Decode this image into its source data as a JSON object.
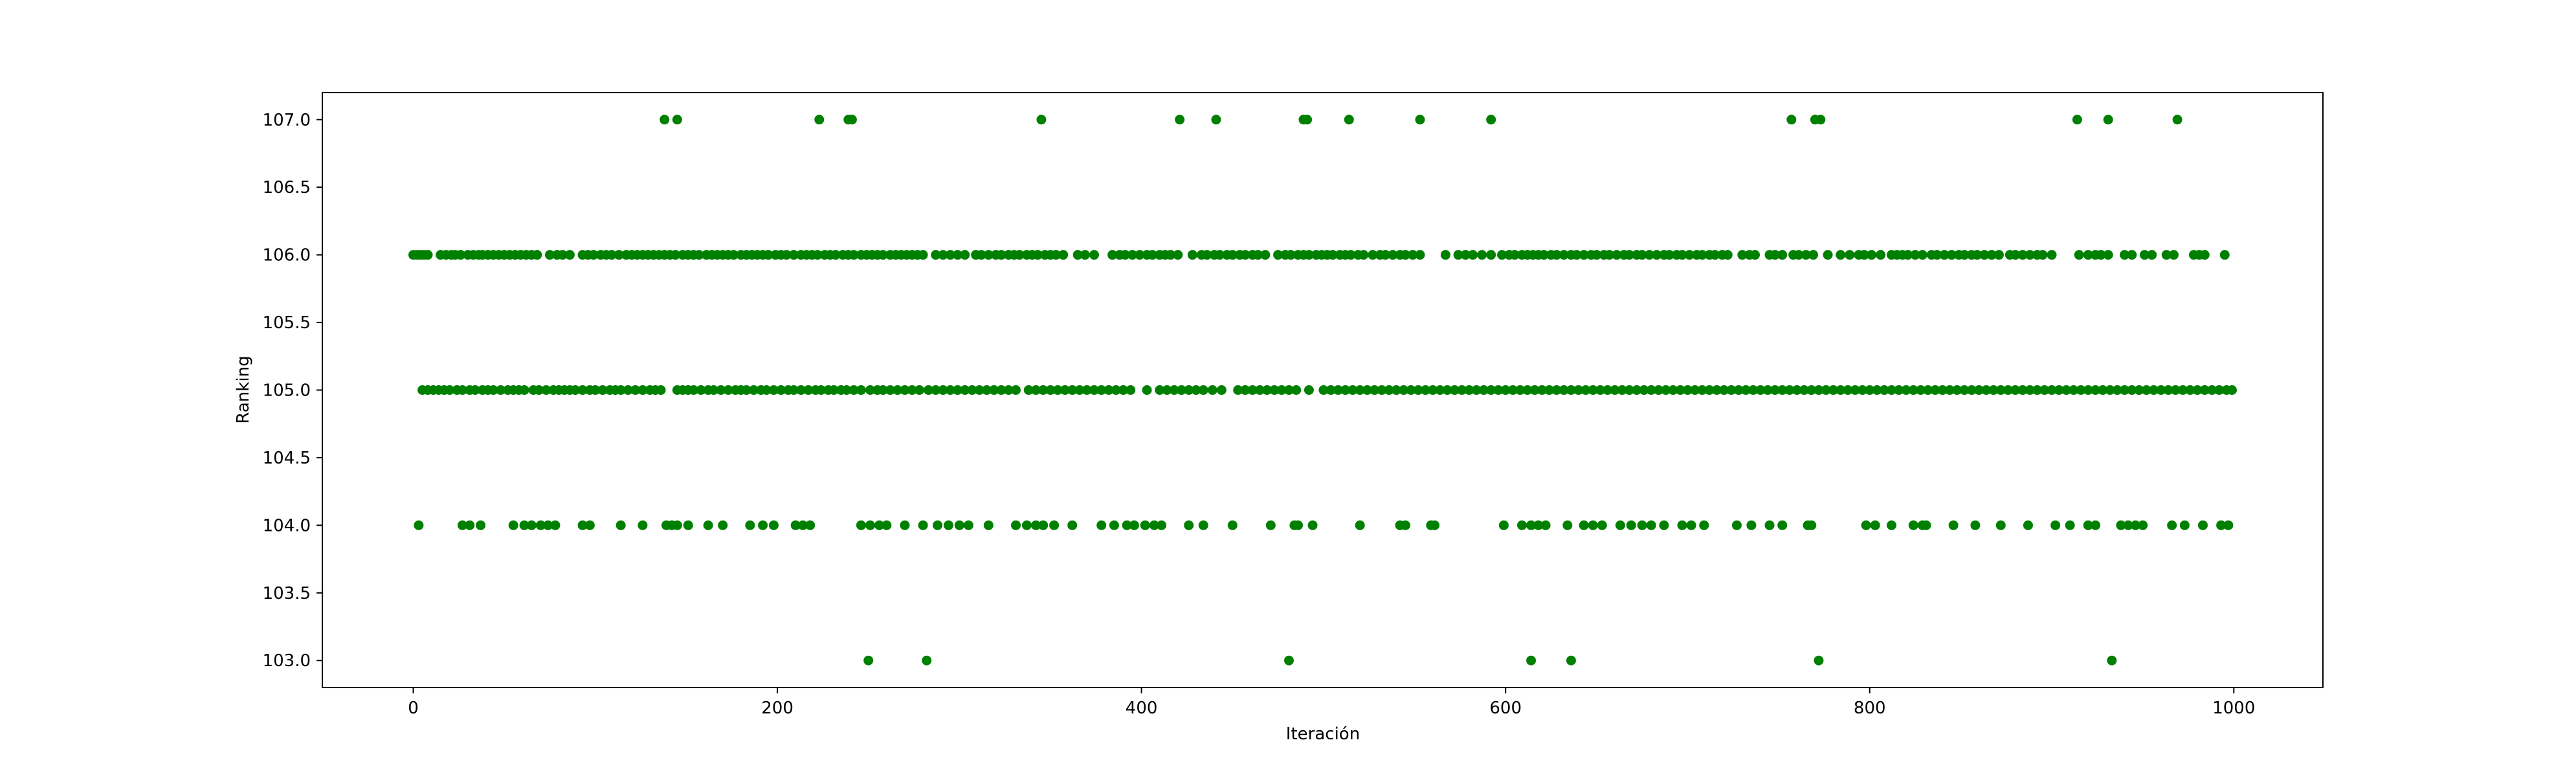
{
  "chart_data": {
    "type": "scatter",
    "title": "",
    "xlabel": "Iteración",
    "ylabel": "Ranking",
    "xlim": [
      -49.95,
      1048.95
    ],
    "ylim": [
      102.8,
      107.2
    ],
    "x_ticks": [
      0,
      200,
      400,
      600,
      800,
      1000
    ],
    "x_tick_labels": [
      "0",
      "200",
      "400",
      "600",
      "800",
      "1000"
    ],
    "y_ticks": [
      103.0,
      103.5,
      104.0,
      104.5,
      105.0,
      105.5,
      106.0,
      106.5,
      107.0
    ],
    "y_tick_labels": [
      "103.0",
      "103.5",
      "104.0",
      "104.5",
      "105.0",
      "105.5",
      "106.0",
      "106.5",
      "107.0"
    ],
    "grid": false,
    "legend": "none",
    "marker_color": "#008000",
    "series": [
      {
        "values_by_level": [
          {
            "y": 107,
            "x": [
              138,
              145,
              223,
              239,
              241,
              345,
              421,
              441,
              489,
              491,
              514,
              553,
              592,
              757,
              770,
              773,
              914,
              931,
              969
            ]
          },
          {
            "y": 106,
            "x": [
              0,
              2,
              4,
              6,
              8,
              15,
              18,
              21,
              23,
              26,
              30,
              33,
              36,
              38,
              41,
              44,
              47,
              50,
              53,
              56,
              59,
              62,
              65,
              68,
              75,
              79,
              82,
              86,
              93,
              96,
              99,
              103,
              106,
              109,
              113,
              117,
              120,
              123,
              126,
              129,
              132,
              135,
              138,
              141,
              144,
              148,
              151,
              154,
              157,
              161,
              164,
              167,
              170,
              173,
              176,
              180,
              183,
              186,
              189,
              192,
              195,
              199,
              202,
              205,
              209,
              213,
              216,
              219,
              222,
              226,
              229,
              232,
              236,
              239,
              242,
              246,
              249,
              252,
              255,
              258,
              262,
              265,
              268,
              271,
              274,
              277,
              280,
              287,
              291,
              295,
              299,
              303,
              309,
              312,
              316,
              320,
              323,
              327,
              330,
              333,
              337,
              340,
              343,
              347,
              350,
              353,
              357,
              365,
              369,
              374,
              384,
              388,
              391,
              395,
              399,
              403,
              406,
              410,
              413,
              416,
              420,
              428,
              433,
              436,
              440,
              443,
              447,
              450,
              454,
              457,
              461,
              464,
              468,
              475,
              479,
              482,
              486,
              489,
              492,
              496,
              499,
              502,
              505,
              509,
              512,
              515,
              519,
              522,
              527,
              531,
              534,
              538,
              542,
              545,
              549,
              553,
              567,
              574,
              578,
              582,
              587,
              592,
              598,
              602,
              605,
              609,
              612,
              615,
              618,
              621,
              625,
              628,
              632,
              636,
              639,
              643,
              647,
              650,
              654,
              657,
              661,
              665,
              668,
              672,
              675,
              679,
              683,
              687,
              690,
              694,
              697,
              701,
              705,
              708,
              712,
              715,
              719,
              722,
              730,
              734,
              737,
              745,
              748,
              752,
              758,
              761,
              765,
              769,
              777,
              784,
              789,
              794,
              797,
              801,
              806,
              812,
              815,
              818,
              821,
              825,
              829,
              834,
              837,
              841,
              845,
              849,
              852,
              856,
              859,
              863,
              867,
              871,
              877,
              880,
              884,
              888,
              892,
              895,
              900,
              915,
              920,
              924,
              927,
              931,
              940,
              944,
              951,
              955,
              963,
              967,
              978,
              981,
              984,
              995
            ]
          },
          {
            "y": 105,
            "x": [
              5,
              8,
              11,
              14,
              17,
              20,
              24,
              27,
              31,
              34,
              38,
              41,
              44,
              48,
              52,
              55,
              58,
              61,
              66,
              69,
              73,
              77,
              80,
              83,
              86,
              89,
              93,
              97,
              100,
              104,
              108,
              111,
              114,
              118,
              122,
              126,
              130,
              133,
              136,
              145,
              148,
              151,
              154,
              158,
              162,
              165,
              169,
              173,
              177,
              180,
              183,
              187,
              191,
              194,
              198,
              202,
              206,
              209,
              213,
              217,
              221,
              224,
              228,
              231,
              235,
              238,
              242,
              246,
              251,
              255,
              258,
              262,
              266,
              270,
              274,
              278,
              283,
              287,
              291,
              295,
              299,
              303,
              307,
              311,
              315,
              319,
              323,
              327,
              331,
              338,
              342,
              346,
              350,
              354,
              358,
              362,
              366,
              370,
              374,
              378,
              382,
              386,
              390,
              394,
              403,
              410,
              414,
              418,
              422,
              426,
              430,
              434,
              439,
              444,
              453,
              457,
              461,
              465,
              469,
              473,
              477,
              481,
              485,
              492,
              500,
              504,
              508,
              512,
              516,
              520,
              524,
              528,
              532,
              536,
              540,
              544,
              548,
              552,
              556,
              560,
              564,
              568,
              572,
              576,
              580,
              584,
              588,
              592,
              596,
              600,
              604,
              608,
              612,
              616,
              620,
              624,
              628,
              632,
              636,
              640,
              644,
              648,
              652,
              656,
              660,
              664,
              668,
              672,
              676,
              680,
              684,
              688,
              692,
              696,
              700,
              704,
              708,
              712,
              716,
              720,
              724,
              728,
              732,
              736,
              740,
              744,
              748,
              752,
              756,
              760,
              764,
              768,
              772,
              776,
              780,
              784,
              788,
              792,
              796,
              800,
              804,
              808,
              812,
              816,
              820,
              824,
              828,
              832,
              836,
              840,
              844,
              848,
              852,
              856,
              860,
              864,
              868,
              872,
              876,
              880,
              884,
              888,
              892,
              896,
              900,
              904,
              908,
              912,
              916,
              920,
              924,
              928,
              932,
              936,
              940,
              944,
              948,
              952,
              956,
              960,
              964,
              968,
              972,
              976,
              980,
              984,
              988,
              992,
              996,
              999
            ]
          },
          {
            "y": 104,
            "x": [
              3,
              27,
              31,
              37,
              55,
              61,
              65,
              70,
              74,
              78,
              93,
              97,
              114,
              126,
              139,
              142,
              145,
              151,
              162,
              170,
              185,
              192,
              198,
              210,
              214,
              218,
              246,
              251,
              256,
              260,
              270,
              280,
              288,
              294,
              300,
              305,
              316,
              331,
              337,
              342,
              346,
              352,
              362,
              378,
              385,
              392,
              396,
              402,
              407,
              411,
              426,
              434,
              450,
              471,
              484,
              486,
              494,
              520,
              542,
              545,
              559,
              561,
              599,
              609,
              614,
              618,
              622,
              634,
              643,
              648,
              653,
              663,
              669,
              675,
              680,
              687,
              697,
              702,
              709,
              727,
              735,
              745,
              752,
              766,
              768,
              798,
              803,
              812,
              824,
              829,
              831,
              846,
              858,
              872,
              887,
              902,
              910,
              920,
              924,
              938,
              942,
              946,
              950,
              966,
              973,
              983,
              993,
              997
            ]
          },
          {
            "y": 103,
            "x": [
              250,
              282,
              481,
              614,
              636,
              772,
              933
            ]
          }
        ]
      }
    ]
  }
}
